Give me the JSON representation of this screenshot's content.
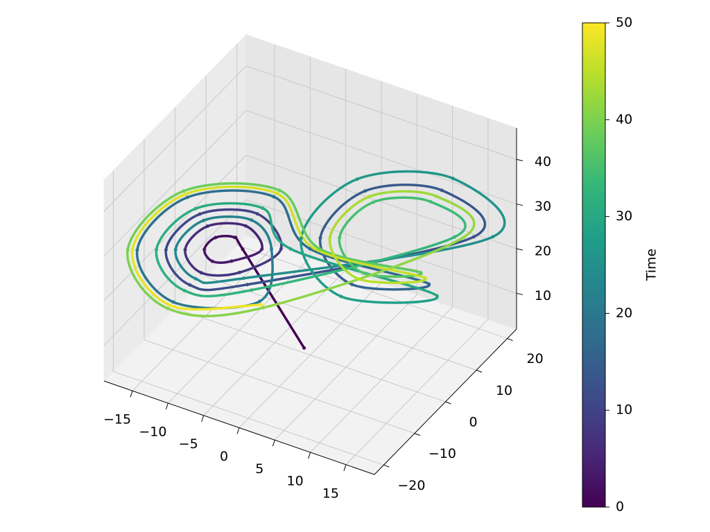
{
  "chart_data": {
    "type": "scatter3d",
    "colormap": "viridis",
    "grid": true,
    "x": [
      0,
      -6.5,
      -7.5,
      -9.5,
      -10.5,
      -9.5,
      -7.5,
      -4.5,
      -6.5,
      -10.5,
      -12.5,
      -10.5,
      -6.5,
      -2.5,
      -5.5,
      -11.5,
      -14.5,
      -11.5,
      -5.5,
      16.5,
      12.5,
      4.5,
      0.5,
      4.5,
      12.5,
      0.5,
      -4,
      -13,
      -17.5,
      -13,
      -4,
      -3.5,
      -6,
      -11,
      -13.5,
      -11,
      -6,
      18.5,
      13.5,
      3.5,
      -1.5,
      3.5,
      13.5,
      -1.5,
      -5,
      -12,
      -15.5,
      -12,
      -5,
      14.5,
      11.5,
      5.5,
      2.5,
      5.5,
      11.5,
      1.5,
      -3.5,
      -13.5,
      -18.5,
      -13.5,
      -3.5,
      15.5,
      12,
      5,
      1.5,
      5,
      12,
      1,
      -3.75,
      -13.25,
      -18,
      -13.25,
      -3.75
    ],
    "y": [
      -2,
      -6.9,
      -7.2,
      -8.8,
      -10.1,
      -9.8,
      -8.2,
      -5.3,
      -5.9,
      -9.1,
      -11.7,
      -11.1,
      -7.9,
      -3.7,
      -4.5,
      -9.3,
      -13.3,
      -12.5,
      -7.7,
      14.9,
      13.8,
      7.4,
      2.1,
      3.2,
      9.6,
      -1.3,
      -2.6,
      -9.8,
      -15.7,
      -14.4,
      -7.2,
      -4.5,
      -5.2,
      -9.2,
      -12.5,
      -11.8,
      -7.8,
      16.5,
      15.1,
      7.1,
      0.5,
      1.9,
      9.9,
      -2.9,
      -3.9,
      -9.5,
      -14.1,
      -13.1,
      -7.5,
      13.3,
      12.5,
      7.7,
      3.7,
      4.5,
      9.3,
      -0.5,
      -1.9,
      -9.9,
      -16.5,
      -15.1,
      -7.1,
      14.1,
      13.1,
      7.5,
      2.9,
      3.9,
      9.5,
      -0.9,
      -2.2,
      -9.8,
      -16.1,
      -14.8,
      -7.2
    ],
    "z": [
      5,
      27,
      29.3,
      29.3,
      27,
      24.7,
      24.7,
      27,
      31.5,
      31.5,
      27,
      22.5,
      22.5,
      27,
      33.8,
      33.8,
      27,
      20.2,
      20.2,
      27,
      36,
      36,
      27,
      18,
      18,
      27,
      37.1,
      37.1,
      27,
      16.9,
      16.9,
      27,
      32.6,
      32.6,
      27,
      21.4,
      21.4,
      27,
      38.3,
      38.3,
      27,
      15.7,
      15.7,
      27,
      34.9,
      34.9,
      27,
      19.1,
      19.1,
      27,
      33.8,
      33.8,
      27,
      20.2,
      20.2,
      27,
      38.3,
      38.3,
      27,
      15.7,
      15.7,
      27,
      34.9,
      34.9,
      27,
      19.1,
      19.1,
      27,
      37.7,
      37.7,
      27,
      16.3,
      16.3
    ],
    "t": [
      0,
      0.7,
      1.4,
      2.1,
      2.8,
      3.5,
      4.1,
      4.8,
      5.5,
      6.2,
      6.9,
      7.6,
      8.3,
      9.0,
      9.7,
      10.4,
      11.0,
      11.7,
      12.4,
      13.1,
      13.8,
      14.5,
      15.2,
      15.9,
      16.6,
      17.3,
      17.9,
      18.6,
      19.3,
      20.0,
      20.7,
      21.4,
      22.1,
      22.8,
      23.5,
      24.2,
      24.8,
      25.5,
      26.2,
      26.9,
      27.6,
      28.3,
      29.0,
      29.7,
      30.4,
      31.1,
      31.7,
      32.4,
      33.1,
      33.8,
      34.5,
      35.2,
      35.9,
      36.6,
      37.3,
      38.0,
      38.6,
      39.3,
      40.0,
      40.7,
      41.4,
      42.1,
      42.8,
      43.5,
      44.2,
      44.9,
      45.5,
      46.2,
      46.9,
      47.6,
      48.3,
      49.0,
      49.7
    ],
    "xlim": [
      -19,
      19
    ],
    "ylim": [
      -23,
      23
    ],
    "zlim": [
      2,
      47
    ],
    "xticks": [
      {
        "value": -15,
        "label": "−15"
      },
      {
        "value": -10,
        "label": "−10"
      },
      {
        "value": -5,
        "label": "−5"
      },
      0,
      5,
      10,
      15
    ],
    "yticks": [
      {
        "value": -20,
        "label": "−20"
      },
      {
        "value": -10,
        "label": "−10"
      },
      0,
      10,
      20
    ],
    "zticks": [
      10,
      20,
      30,
      40
    ],
    "colorbar": {
      "label": "Time",
      "lim": [
        0,
        50
      ],
      "ticks": [
        0,
        10,
        20,
        30,
        40,
        50
      ]
    }
  }
}
